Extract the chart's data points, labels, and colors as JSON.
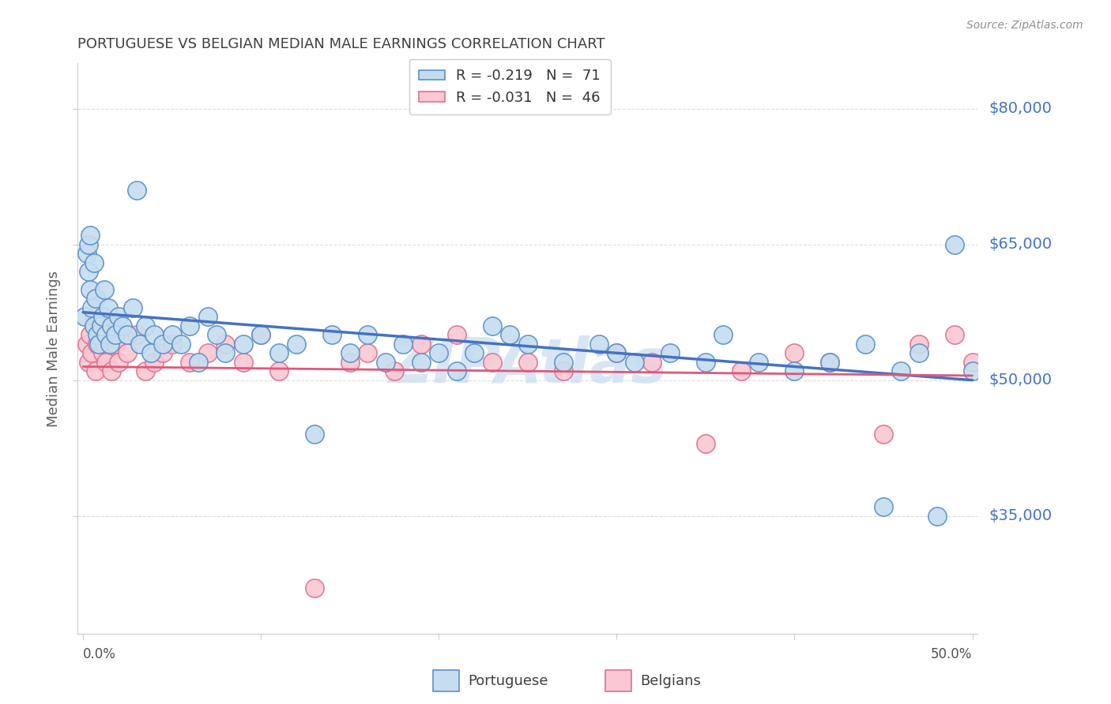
{
  "title": "PORTUGUESE VS BELGIAN MEDIAN MALE EARNINGS CORRELATION CHART",
  "source": "Source: ZipAtlas.com",
  "ylabel": "Median Male Earnings",
  "ytick_labels": [
    "$35,000",
    "$50,000",
    "$65,000",
    "$80,000"
  ],
  "ytick_values": [
    35000,
    50000,
    65000,
    80000
  ],
  "ymin": 22000,
  "ymax": 85000,
  "xmin": -0.003,
  "xmax": 0.503,
  "legend_r1": "-0.219",
  "legend_n1": "71",
  "legend_r2": "-0.031",
  "legend_n2": "46",
  "color_portuguese": "#C5DDEF",
  "color_belgians": "#F9C8D2",
  "edge_color_portuguese": "#5B8FCC",
  "edge_color_belgians": "#E07090",
  "line_color_portuguese": "#4472C4",
  "line_color_belgians": "#E05878",
  "title_color": "#404040",
  "source_color": "#909090",
  "grid_color": "#DDDDDD",
  "watermark_color": "#C8DCF0",
  "portuguese_x": [
    0.001,
    0.002,
    0.003,
    0.003,
    0.004,
    0.004,
    0.005,
    0.006,
    0.006,
    0.007,
    0.008,
    0.009,
    0.01,
    0.011,
    0.012,
    0.013,
    0.014,
    0.015,
    0.016,
    0.018,
    0.02,
    0.022,
    0.025,
    0.028,
    0.03,
    0.032,
    0.035,
    0.038,
    0.04,
    0.045,
    0.05,
    0.055,
    0.06,
    0.065,
    0.07,
    0.075,
    0.08,
    0.09,
    0.1,
    0.11,
    0.12,
    0.13,
    0.14,
    0.15,
    0.16,
    0.17,
    0.18,
    0.19,
    0.2,
    0.21,
    0.22,
    0.23,
    0.24,
    0.25,
    0.27,
    0.29,
    0.3,
    0.31,
    0.33,
    0.35,
    0.36,
    0.38,
    0.4,
    0.42,
    0.44,
    0.45,
    0.46,
    0.47,
    0.48,
    0.49,
    0.5
  ],
  "portuguese_y": [
    57000,
    64000,
    62000,
    65000,
    60000,
    66000,
    58000,
    63000,
    56000,
    59000,
    55000,
    54000,
    56000,
    57000,
    60000,
    55000,
    58000,
    54000,
    56000,
    55000,
    57000,
    56000,
    55000,
    58000,
    71000,
    54000,
    56000,
    53000,
    55000,
    54000,
    55000,
    54000,
    56000,
    52000,
    57000,
    55000,
    53000,
    54000,
    55000,
    53000,
    54000,
    44000,
    55000,
    53000,
    55000,
    52000,
    54000,
    52000,
    53000,
    51000,
    53000,
    56000,
    55000,
    54000,
    52000,
    54000,
    53000,
    52000,
    53000,
    52000,
    55000,
    52000,
    51000,
    52000,
    54000,
    36000,
    51000,
    53000,
    35000,
    65000,
    51000
  ],
  "belgians_x": [
    0.002,
    0.003,
    0.004,
    0.005,
    0.006,
    0.007,
    0.008,
    0.01,
    0.011,
    0.012,
    0.013,
    0.015,
    0.016,
    0.018,
    0.02,
    0.025,
    0.03,
    0.035,
    0.04,
    0.045,
    0.05,
    0.06,
    0.07,
    0.08,
    0.09,
    0.1,
    0.11,
    0.13,
    0.15,
    0.16,
    0.175,
    0.19,
    0.21,
    0.23,
    0.25,
    0.27,
    0.3,
    0.32,
    0.35,
    0.37,
    0.4,
    0.42,
    0.45,
    0.47,
    0.49,
    0.5
  ],
  "belgians_y": [
    54000,
    52000,
    55000,
    53000,
    57000,
    51000,
    54000,
    56000,
    53000,
    54000,
    52000,
    55000,
    51000,
    54000,
    52000,
    53000,
    55000,
    51000,
    52000,
    53000,
    54000,
    52000,
    53000,
    54000,
    52000,
    55000,
    51000,
    27000,
    52000,
    53000,
    51000,
    54000,
    55000,
    52000,
    52000,
    51000,
    53000,
    52000,
    43000,
    51000,
    53000,
    52000,
    44000,
    54000,
    55000,
    52000
  ]
}
